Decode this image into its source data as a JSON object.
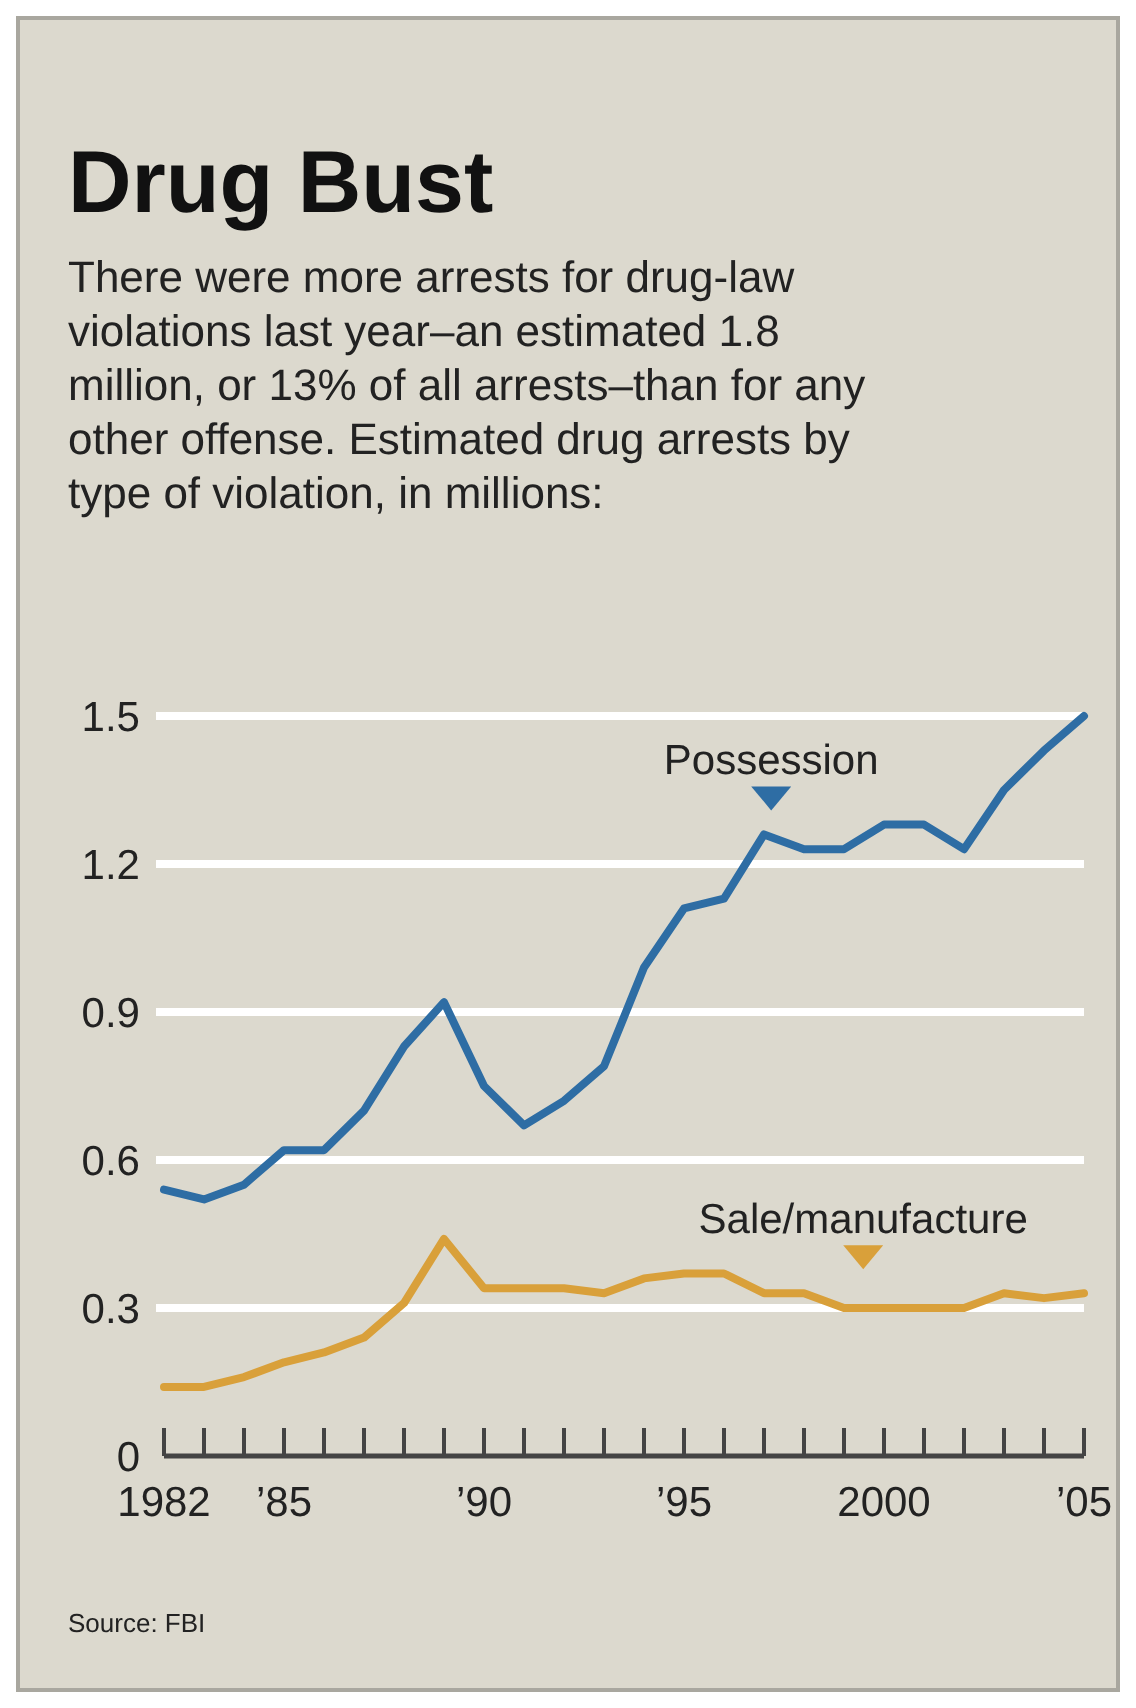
{
  "chart_data": {
    "type": "line",
    "title": "Drug Bust",
    "subtitle": "There were more arrests for drug-law violations last year–an estimated 1.8 million, or 13% of all arrests–than for any other offense. Estimated drug arrests by type of violation, in millions:",
    "x": [
      1982,
      1983,
      1984,
      1985,
      1986,
      1987,
      1988,
      1989,
      1990,
      1991,
      1992,
      1993,
      1994,
      1995,
      1996,
      1997,
      1998,
      1999,
      2000,
      2001,
      2002,
      2003,
      2004,
      2005
    ],
    "series": [
      {
        "name": "Possession",
        "color": "#2e6da4",
        "values": [
          0.54,
          0.52,
          0.55,
          0.62,
          0.62,
          0.7,
          0.83,
          0.92,
          0.75,
          0.67,
          0.72,
          0.79,
          0.99,
          1.11,
          1.13,
          1.26,
          1.23,
          1.23,
          1.28,
          1.28,
          1.23,
          1.35,
          1.43,
          1.5
        ]
      },
      {
        "name": "Sale/manufacture",
        "color": "#d9a03a",
        "values": [
          0.14,
          0.14,
          0.16,
          0.19,
          0.21,
          0.24,
          0.31,
          0.44,
          0.34,
          0.34,
          0.34,
          0.33,
          0.36,
          0.37,
          0.37,
          0.33,
          0.33,
          0.3,
          0.3,
          0.3,
          0.3,
          0.33,
          0.32,
          0.33
        ]
      }
    ],
    "xlim": [
      1982,
      2005
    ],
    "xticks": [
      {
        "value": 1982,
        "label": "1982"
      },
      {
        "value": 1983,
        "label": null
      },
      {
        "value": 1984,
        "label": null
      },
      {
        "value": 1985,
        "label": "’85"
      },
      {
        "value": 1986,
        "label": null
      },
      {
        "value": 1987,
        "label": null
      },
      {
        "value": 1988,
        "label": null
      },
      {
        "value": 1989,
        "label": null
      },
      {
        "value": 1990,
        "label": "’90"
      },
      {
        "value": 1991,
        "label": null
      },
      {
        "value": 1992,
        "label": null
      },
      {
        "value": 1993,
        "label": null
      },
      {
        "value": 1994,
        "label": null
      },
      {
        "value": 1995,
        "label": "’95"
      },
      {
        "value": 1996,
        "label": null
      },
      {
        "value": 1997,
        "label": null
      },
      {
        "value": 1998,
        "label": null
      },
      {
        "value": 1999,
        "label": null
      },
      {
        "value": 2000,
        "label": "2000"
      },
      {
        "value": 2001,
        "label": null
      },
      {
        "value": 2002,
        "label": null
      },
      {
        "value": 2003,
        "label": null
      },
      {
        "value": 2004,
        "label": null
      },
      {
        "value": 2005,
        "label": "’05"
      }
    ],
    "ylim": [
      0,
      1.5
    ],
    "yticks": [
      0,
      0.3,
      0.6,
      0.9,
      1.2,
      1.5
    ],
    "grid": "y",
    "legend": false,
    "marker": "none",
    "line_style": "solid",
    "annotations": [
      "Source: FBI"
    ]
  }
}
